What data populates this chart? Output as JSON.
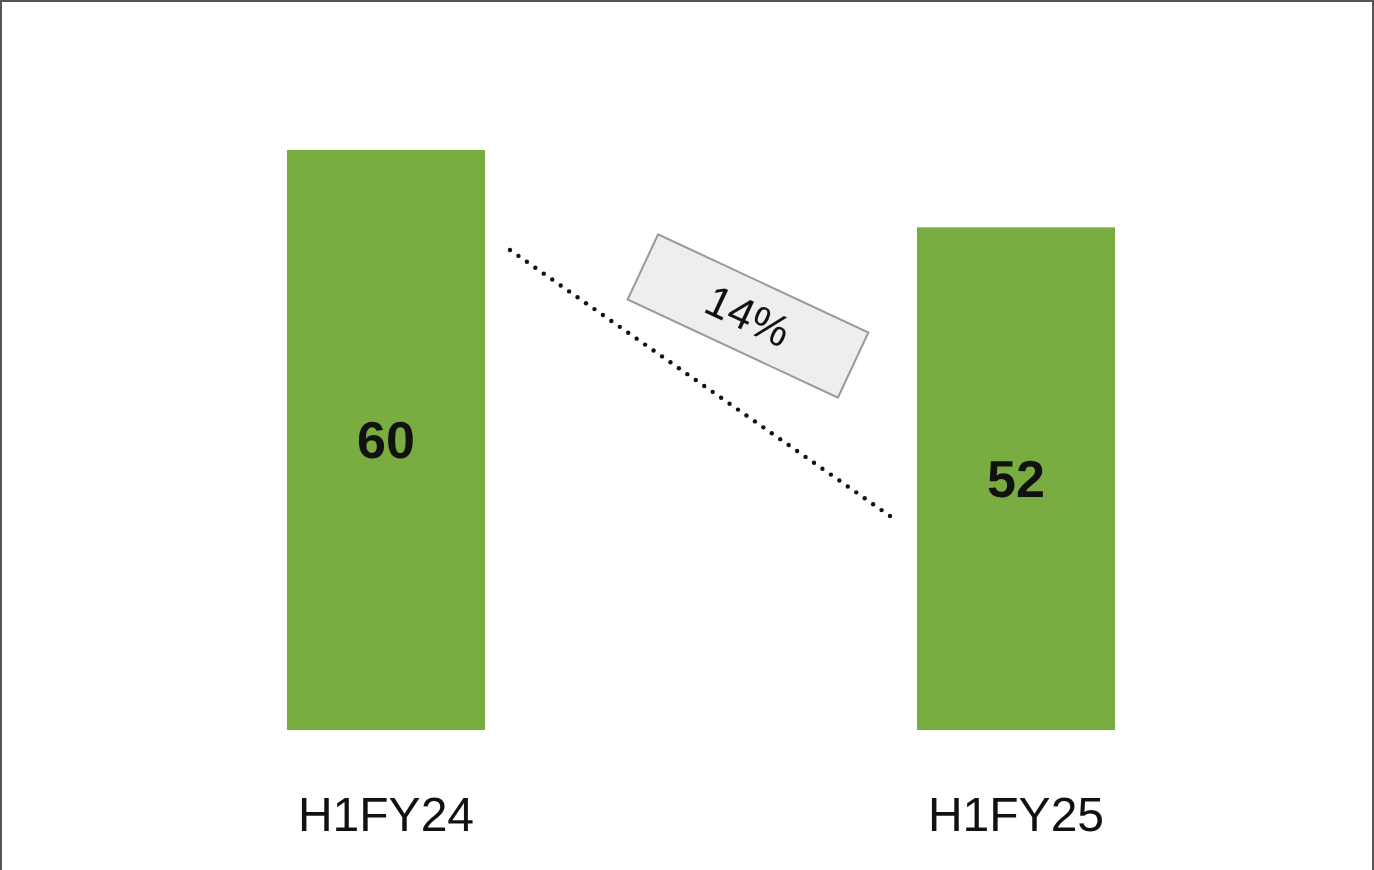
{
  "chart_data": {
    "type": "bar",
    "categories": [
      "H1FY24",
      "H1FY25"
    ],
    "values": [
      60,
      52
    ],
    "color": "#7aad41",
    "data_labels": true,
    "annotations": [
      "14%"
    ]
  }
}
